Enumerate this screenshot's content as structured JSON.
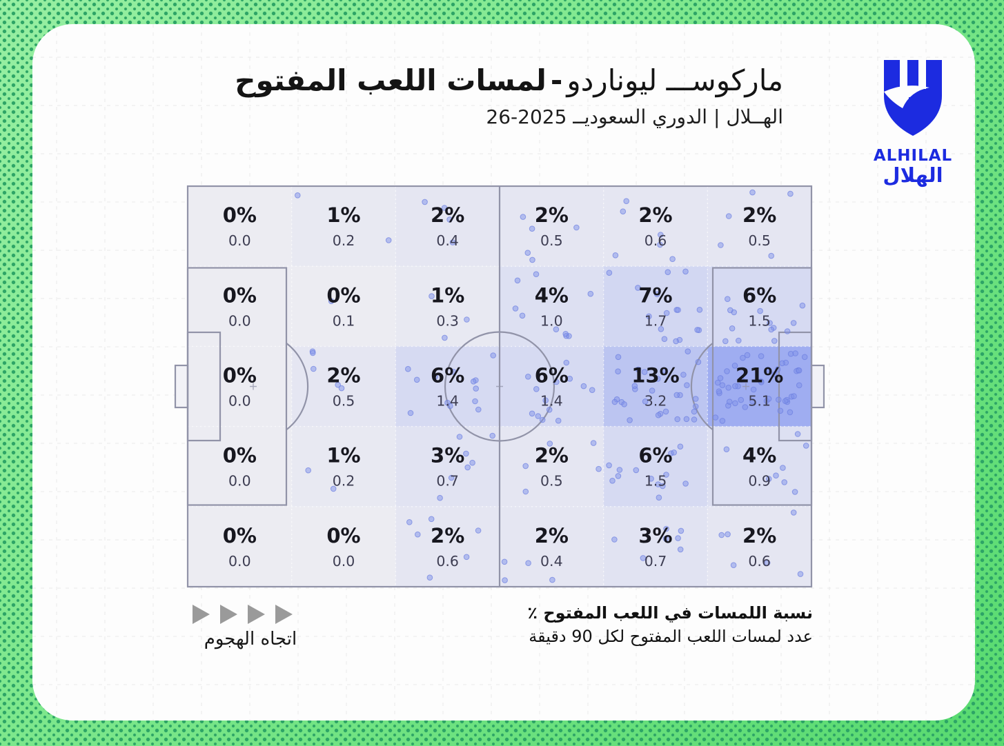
{
  "header": {
    "title_name": "ماركوســـ ليوناردو",
    "title_separator": "-",
    "title_metric": "لمسات اللعب المفتوح",
    "subtitle": "الهــلال | الدوري السعوديــ 2025-26",
    "logo": {
      "wordmark_en": "ALHILAL",
      "wordmark_ar": "الهلال",
      "color": "#1c2be0"
    }
  },
  "legend": {
    "attack_direction_label": "اتجاه الهجوم",
    "metric_primary": "نسبة اللمسات في اللعب المفتوح ٪",
    "metric_secondary": "عدد لمسات اللعب المفتوح لكل 90 دقيقة"
  },
  "chart_data": {
    "type": "heatmap",
    "title": "ماركوس ليوناردو - لمسات اللعب المفتوح",
    "subtitle": "الهلال | الدوري السعودي 2025-26",
    "grid": {
      "rows": 5,
      "cols": 6
    },
    "orientation": "attack-left-to-right",
    "pct": [
      [
        0,
        1,
        2,
        2,
        2,
        2
      ],
      [
        0,
        0,
        1,
        4,
        7,
        6
      ],
      [
        0,
        2,
        6,
        6,
        13,
        21
      ],
      [
        0,
        1,
        3,
        2,
        6,
        4
      ],
      [
        0,
        0,
        2,
        2,
        3,
        2
      ]
    ],
    "per90": [
      [
        0.0,
        0.2,
        0.4,
        0.5,
        0.6,
        0.5
      ],
      [
        0.0,
        0.1,
        0.3,
        1.0,
        1.7,
        1.5
      ],
      [
        0.0,
        0.5,
        1.4,
        1.4,
        3.2,
        5.1
      ],
      [
        0.0,
        0.2,
        0.7,
        0.5,
        1.5,
        0.9
      ],
      [
        0.0,
        0.0,
        0.6,
        0.4,
        0.7,
        0.6
      ]
    ],
    "pct_labels": [
      [
        "0%",
        "1%",
        "2%",
        "2%",
        "2%",
        "2%"
      ],
      [
        "0%",
        "0%",
        "1%",
        "4%",
        "7%",
        "6%"
      ],
      [
        "0%",
        "2%",
        "6%",
        "6%",
        "13%",
        "21%"
      ],
      [
        "0%",
        "1%",
        "3%",
        "2%",
        "6%",
        "4%"
      ],
      [
        "0%",
        "0%",
        "2%",
        "2%",
        "3%",
        "2%"
      ]
    ],
    "per90_labels": [
      [
        "0.0",
        "0.2",
        "0.4",
        "0.5",
        "0.6",
        "0.5"
      ],
      [
        "0.0",
        "0.1",
        "0.3",
        "1.0",
        "1.7",
        "1.5"
      ],
      [
        "0.0",
        "0.5",
        "1.4",
        "1.4",
        "3.2",
        "5.1"
      ],
      [
        "0.0",
        "0.2",
        "0.7",
        "0.5",
        "1.5",
        "0.9"
      ],
      [
        "0.0",
        "0.0",
        "0.6",
        "0.4",
        "0.7",
        "0.6"
      ]
    ],
    "max_pct": 21,
    "colors": {
      "zone_min": "#ececf2",
      "zone_max": "#9fadf1",
      "dot_fill": "#8092ea",
      "dot_stroke": "#6c7fe0",
      "pitch_line": "#9193a8",
      "pct_text": "#17171f",
      "per90_text": "#3d3d52"
    }
  }
}
